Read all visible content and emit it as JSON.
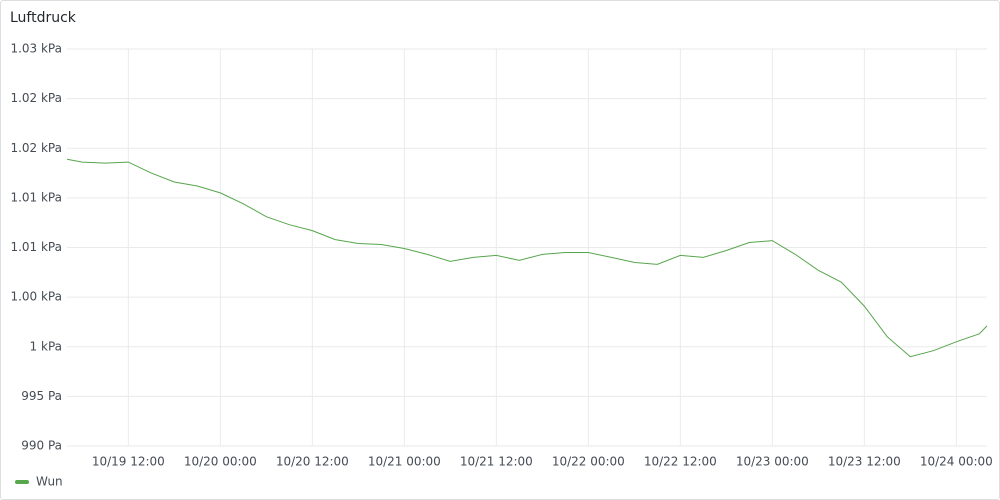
{
  "chart_data": {
    "type": "line",
    "title": "Luftdruck",
    "x": [
      "10/19 04:00",
      "10/19 06:00",
      "10/19 09:00",
      "10/19 12:00",
      "10/19 15:00",
      "10/19 18:00",
      "10/19 21:00",
      "10/20 00:00",
      "10/20 03:00",
      "10/20 06:00",
      "10/20 09:00",
      "10/20 12:00",
      "10/20 15:00",
      "10/20 18:00",
      "10/20 21:00",
      "10/21 00:00",
      "10/21 03:00",
      "10/21 06:00",
      "10/21 09:00",
      "10/21 12:00",
      "10/21 15:00",
      "10/21 18:00",
      "10/21 21:00",
      "10/22 00:00",
      "10/22 03:00",
      "10/22 06:00",
      "10/22 09:00",
      "10/22 12:00",
      "10/22 15:00",
      "10/22 18:00",
      "10/22 21:00",
      "10/23 00:00",
      "10/23 03:00",
      "10/23 06:00",
      "10/23 09:00",
      "10/23 12:00",
      "10/23 15:00",
      "10/23 18:00",
      "10/23 21:00",
      "10/24 00:00",
      "10/24 03:00",
      "10/24 04:00"
    ],
    "series": [
      {
        "name": "Wun",
        "color": "#56a64b",
        "values": [
          1018.9,
          1018.6,
          1018.5,
          1018.6,
          1017.5,
          1016.6,
          1016.2,
          1015.5,
          1014.4,
          1013.1,
          1012.3,
          1011.7,
          1010.8,
          1010.4,
          1010.3,
          1009.9,
          1009.3,
          1008.6,
          1009.0,
          1009.2,
          1008.7,
          1009.3,
          1009.5,
          1009.5,
          1009.0,
          1008.5,
          1008.3,
          1009.2,
          1009.0,
          1009.7,
          1010.5,
          1010.7,
          1009.3,
          1007.7,
          1006.5,
          1004.1,
          1001.0,
          999.0,
          999.6,
          1000.5,
          1001.3,
          1002.1
        ]
      }
    ],
    "xlim": [
      "10/19 04:00",
      "10/24 04:00"
    ],
    "xticks": [
      "10/19 12:00",
      "10/20 00:00",
      "10/20 12:00",
      "10/21 00:00",
      "10/21 12:00",
      "10/22 00:00",
      "10/22 12:00",
      "10/23 00:00",
      "10/23 12:00",
      "10/24 00:00"
    ],
    "ylim": [
      990,
      1030
    ],
    "yticks": [
      {
        "value": 990,
        "label": "990 Pa"
      },
      {
        "value": 995,
        "label": "995 Pa"
      },
      {
        "value": 1000,
        "label": "1 kPa"
      },
      {
        "value": 1005,
        "label": "1.00 kPa"
      },
      {
        "value": 1010,
        "label": "1.01 kPa"
      },
      {
        "value": 1015,
        "label": "1.01 kPa"
      },
      {
        "value": 1020,
        "label": "1.02 kPa"
      },
      {
        "value": 1025,
        "label": "1.02 kPa"
      },
      {
        "value": 1030,
        "label": "1.03 kPa"
      }
    ],
    "grid": true,
    "legend": "bottom-left"
  }
}
